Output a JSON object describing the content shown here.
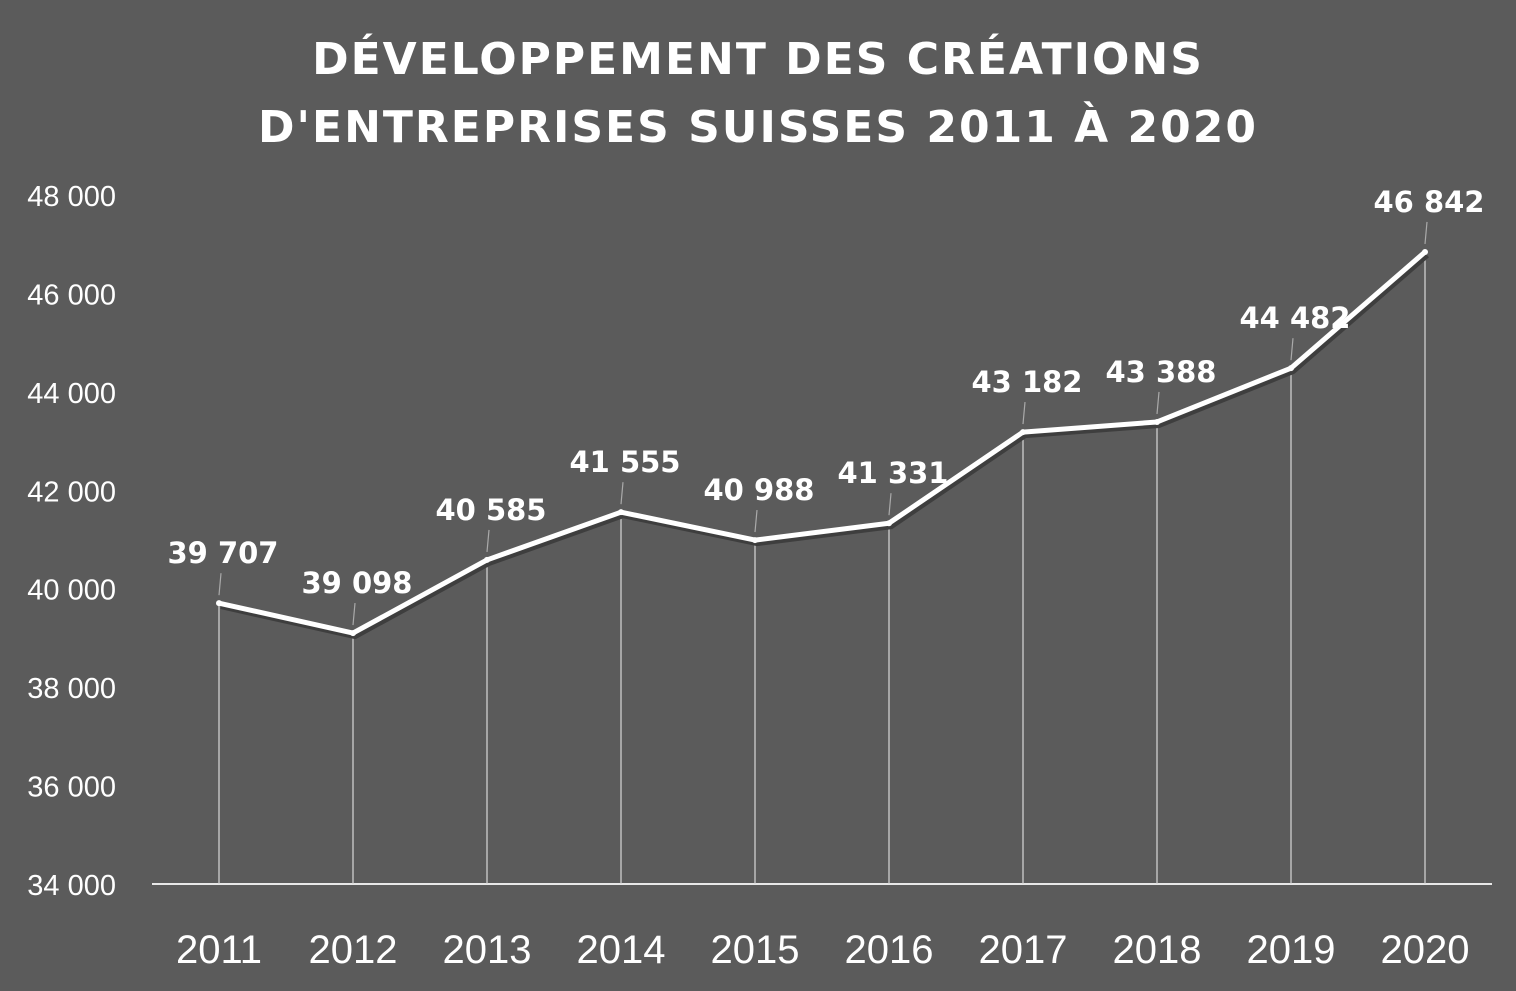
{
  "chart_data": {
    "type": "line",
    "title_lines": [
      "DÉVELOPPEMENT DES CRÉATIONS",
      "D'ENTREPRISES SUISSES 2011 À 2020"
    ],
    "categories": [
      "2011",
      "2012",
      "2013",
      "2014",
      "2015",
      "2016",
      "2017",
      "2018",
      "2019",
      "2020"
    ],
    "values": [
      39707,
      39098,
      40585,
      41555,
      40988,
      41331,
      43182,
      43388,
      44482,
      46842
    ],
    "data_labels": [
      "39 707",
      "39 098",
      "40 585",
      "41 555",
      "40 988",
      "41 331",
      "43 182",
      "43 388",
      "44 482",
      "46 842"
    ],
    "yticks": [
      "34 000",
      "36 000",
      "38 000",
      "40 000",
      "42 000",
      "44 000",
      "46 000",
      "48 000"
    ],
    "ylim": [
      34000,
      48000
    ],
    "xlabel": "",
    "ylabel": "",
    "grid": false,
    "legend": "none",
    "colors": {
      "background": "#5b5b5b",
      "line": "#ffffff",
      "text": "#ffffff"
    }
  }
}
